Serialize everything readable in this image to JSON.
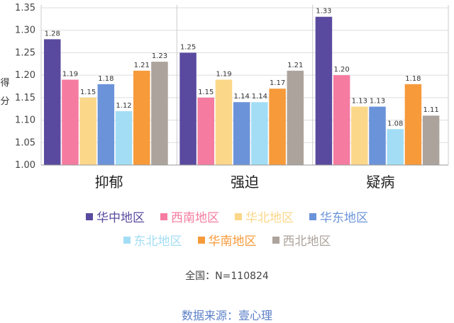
{
  "chart_data": {
    "type": "bar",
    "categories": [
      "抑郁",
      "强迫",
      "疑病"
    ],
    "series": [
      {
        "name": "华中地区",
        "values": [
          1.28,
          1.25,
          1.33
        ]
      },
      {
        "name": "西南地区",
        "values": [
          1.19,
          1.15,
          1.2
        ]
      },
      {
        "name": "华北地区",
        "values": [
          1.15,
          1.19,
          1.13
        ]
      },
      {
        "name": "华东地区",
        "values": [
          1.18,
          1.14,
          1.13
        ]
      },
      {
        "name": "东北地区",
        "values": [
          1.12,
          1.14,
          1.08
        ]
      },
      {
        "name": "华南地区",
        "values": [
          1.21,
          1.17,
          1.18
        ]
      },
      {
        "name": "西北地区",
        "values": [
          1.23,
          1.21,
          1.11
        ]
      }
    ],
    "colors": [
      "#5a4a9f",
      "#f57ba0",
      "#fbd789",
      "#6b93d9",
      "#a3ddf5",
      "#f79a3a",
      "#aca39c"
    ],
    "ylabel": "得分",
    "ylim": [
      1.0,
      1.35
    ],
    "yticks": [
      1.0,
      1.05,
      1.1,
      1.15,
      1.2,
      1.25,
      1.3,
      1.35
    ],
    "grid": true,
    "legend_position": "bottom"
  },
  "total_note": "全国：N=110824",
  "source_note": "数据来源：壹心理"
}
